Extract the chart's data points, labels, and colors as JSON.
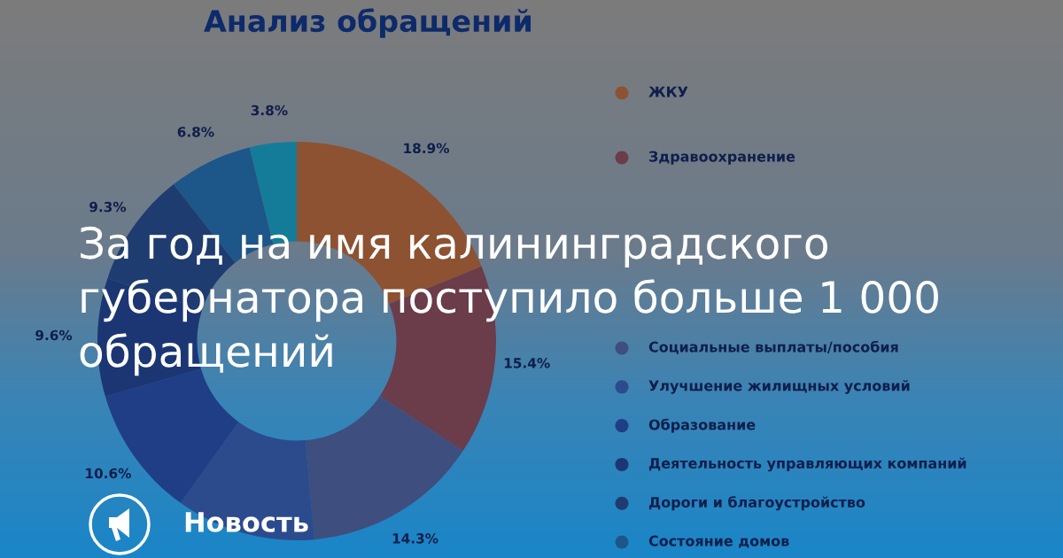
{
  "chart_data": {
    "type": "donut",
    "title": "За год на имя калининградского губернатора поступило больше 1 000 обращений",
    "subtitle": "Анализ обращений",
    "annotations": [
      "Новость"
    ],
    "categories": [
      "ЖКУ",
      "Здравоохранение",
      "Социальные выплаты/пособия",
      "Улучшение жилищных условий",
      "Образование",
      "Деятельность управляющих компаний",
      "Дороги и благоустройство",
      "Состояние домов",
      null
    ],
    "values": [
      18.9,
      15.4,
      14.3,
      11.3,
      10.6,
      9.6,
      9.3,
      6.8,
      3.8
    ],
    "colors": [
      "#8d5232",
      "#6b3c4a",
      "#3e4e7e",
      "#2b4b8d",
      "#1f3e85",
      "#1c3673",
      "#1f3c70",
      "#1d5689",
      "#147c98"
    ],
    "value_labels": [
      "18.9%",
      "15.4%",
      "14.3%",
      null,
      "10.6%",
      "9.6%",
      "9.3%",
      "6.8%",
      "3.8%"
    ],
    "legend": "right"
  }
}
